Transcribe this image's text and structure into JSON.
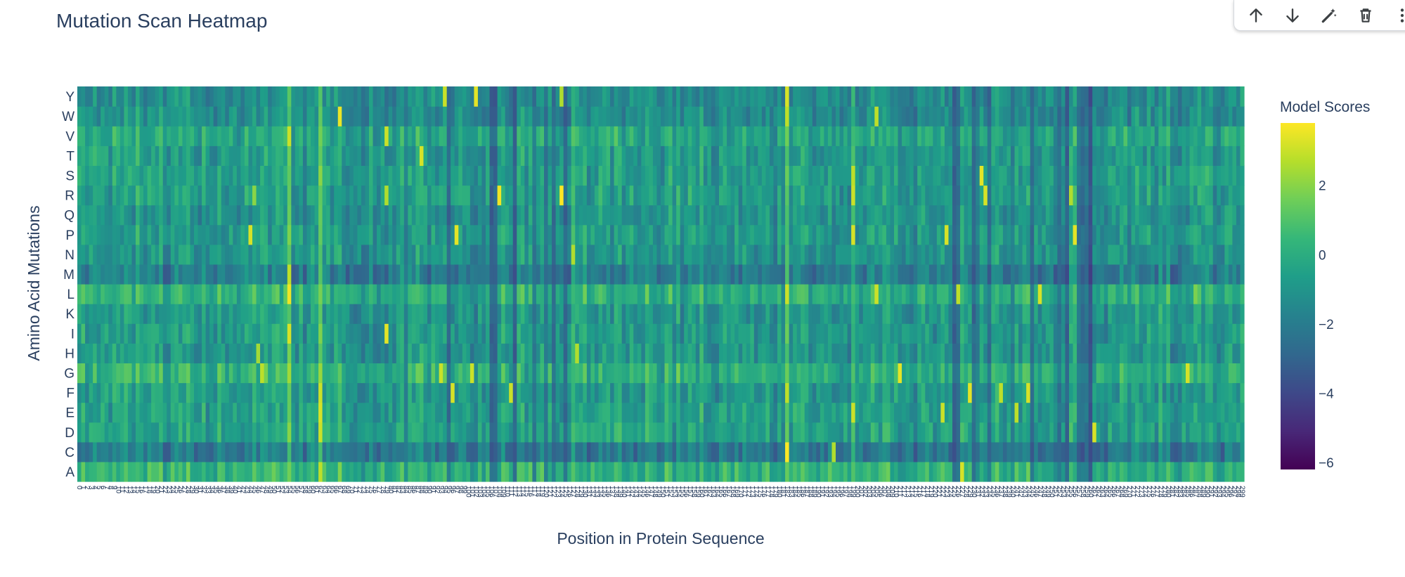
{
  "toolbar": {
    "items": [
      {
        "name": "move-up-icon"
      },
      {
        "name": "move-down-icon"
      },
      {
        "name": "edit-wand-icon"
      },
      {
        "name": "delete-icon"
      },
      {
        "name": "more-options-icon"
      }
    ]
  },
  "chart_data": {
    "type": "heatmap",
    "title": "Mutation Scan Heatmap",
    "xlabel": "Position in Protein Sequence",
    "ylabel": "Amino Acid Mutations",
    "colorbar_title": "Model Scores",
    "colorscale": "viridis",
    "colors": [
      "#440154",
      "#482878",
      "#3e4989",
      "#31688e",
      "#26828e",
      "#1f9e89",
      "#35b779",
      "#6ece58",
      "#b5de2b",
      "#fde725"
    ],
    "zmin": -6.2,
    "zmax": 3.8,
    "colorbar_ticks": [
      2,
      0,
      -2,
      -4,
      -6
    ],
    "colorbar_ticktext": [
      "2",
      "0",
      "−2",
      "−4",
      "−6"
    ],
    "y_categories": [
      "A",
      "C",
      "D",
      "E",
      "F",
      "G",
      "H",
      "I",
      "K",
      "L",
      "M",
      "N",
      "P",
      "Q",
      "R",
      "S",
      "T",
      "V",
      "W",
      "Y"
    ],
    "x_positions": {
      "start": 0,
      "end": 300,
      "count": 300
    },
    "row_baseline": {
      "A": 0.2,
      "C": -2.1,
      "D": -0.5,
      "E": -0.6,
      "F": -0.8,
      "G": 0.1,
      "H": -0.9,
      "I": -0.8,
      "K": -0.9,
      "L": 0.0,
      "M": -2.0,
      "N": -1.0,
      "P": -0.8,
      "Q": -1.0,
      "R": -0.7,
      "S": -0.6,
      "T": -0.8,
      "V": -0.3,
      "W": -1.3,
      "Y": -1.3
    },
    "column_effects": [
      {
        "position": 54,
        "value": 2.6
      },
      {
        "position": 62,
        "value": 2.0
      },
      {
        "position": 84,
        "value": -1.8
      },
      {
        "position": 95,
        "value": -2.6
      },
      {
        "position": 106,
        "value": -3.6
      },
      {
        "position": 107,
        "value": -3.2
      },
      {
        "position": 112,
        "value": -3.0
      },
      {
        "position": 117,
        "value": -2.6
      },
      {
        "position": 120,
        "value": -2.4
      },
      {
        "position": 122,
        "value": -2.8
      },
      {
        "position": 125,
        "value": -3.1
      },
      {
        "position": 127,
        "value": 1.2
      },
      {
        "position": 182,
        "value": 1.6
      },
      {
        "position": 199,
        "value": 1.3
      },
      {
        "position": 225,
        "value": -3.4
      },
      {
        "position": 226,
        "value": -2.4
      },
      {
        "position": 230,
        "value": -2.9
      },
      {
        "position": 231,
        "value": -2.1
      },
      {
        "position": 234,
        "value": -2.5
      },
      {
        "position": 240,
        "value": -2.3
      },
      {
        "position": 245,
        "value": -2.6
      },
      {
        "position": 252,
        "value": -3.0
      },
      {
        "position": 254,
        "value": -3.0
      },
      {
        "position": 258,
        "value": -2.8
      },
      {
        "position": 259,
        "value": -2.9
      },
      {
        "position": 257,
        "value": -2.0
      },
      {
        "position": 260,
        "value": -3.6
      }
    ],
    "hotspots": [
      {
        "position": 54,
        "aa": "L",
        "value": 3.6
      },
      {
        "position": 54,
        "aa": "I",
        "value": 3.2
      },
      {
        "position": 54,
        "aa": "V",
        "value": 3.0
      },
      {
        "position": 54,
        "aa": "M",
        "value": 2.8
      },
      {
        "position": 62,
        "aa": "E",
        "value": 3.2
      },
      {
        "position": 62,
        "aa": "D",
        "value": 3.0
      },
      {
        "position": 62,
        "aa": "A",
        "value": 2.8
      },
      {
        "position": 62,
        "aa": "F",
        "value": 3.0
      },
      {
        "position": 67,
        "aa": "W",
        "value": 3.5
      },
      {
        "position": 44,
        "aa": "P",
        "value": 3.2
      },
      {
        "position": 45,
        "aa": "R",
        "value": 2.0
      },
      {
        "position": 46,
        "aa": "H",
        "value": 2.4
      },
      {
        "position": 47,
        "aa": "G",
        "value": 2.8
      },
      {
        "position": 79,
        "aa": "I",
        "value": 3.4
      },
      {
        "position": 79,
        "aa": "V",
        "value": 3.0
      },
      {
        "position": 79,
        "aa": "R",
        "value": 2.6
      },
      {
        "position": 88,
        "aa": "T",
        "value": 3.2
      },
      {
        "position": 94,
        "aa": "Y",
        "value": 3.0
      },
      {
        "position": 97,
        "aa": "P",
        "value": 3.4
      },
      {
        "position": 96,
        "aa": "F",
        "value": 3.2
      },
      {
        "position": 93,
        "aa": "G",
        "value": 3.0
      },
      {
        "position": 101,
        "aa": "G",
        "value": 3.0
      },
      {
        "position": 102,
        "aa": "Y",
        "value": 3.4
      },
      {
        "position": 108,
        "aa": "R",
        "value": 3.6
      },
      {
        "position": 111,
        "aa": "F",
        "value": 3.0
      },
      {
        "position": 124,
        "aa": "R",
        "value": 3.8
      },
      {
        "position": 128,
        "aa": "H",
        "value": 2.6
      },
      {
        "position": 127,
        "aa": "N",
        "value": 2.6
      },
      {
        "position": 124,
        "aa": "Y",
        "value": 2.6
      },
      {
        "position": 182,
        "aa": "C",
        "value": 3.8
      },
      {
        "position": 182,
        "aa": "Y",
        "value": 3.2
      },
      {
        "position": 182,
        "aa": "W",
        "value": 2.8
      },
      {
        "position": 182,
        "aa": "L",
        "value": 3.0
      },
      {
        "position": 182,
        "aa": "F",
        "value": 2.8
      },
      {
        "position": 194,
        "aa": "C",
        "value": 2.6
      },
      {
        "position": 199,
        "aa": "E",
        "value": 3.0
      },
      {
        "position": 199,
        "aa": "P",
        "value": 3.2
      },
      {
        "position": 199,
        "aa": "R",
        "value": 3.0
      },
      {
        "position": 199,
        "aa": "S",
        "value": 2.8
      },
      {
        "position": 205,
        "aa": "W",
        "value": 2.8
      },
      {
        "position": 205,
        "aa": "L",
        "value": 3.0
      },
      {
        "position": 211,
        "aa": "G",
        "value": 3.4
      },
      {
        "position": 222,
        "aa": "E",
        "value": 3.0
      },
      {
        "position": 223,
        "aa": "P",
        "value": 3.2
      },
      {
        "position": 226,
        "aa": "L",
        "value": 2.8
      },
      {
        "position": 227,
        "aa": "A",
        "value": 3.2
      },
      {
        "position": 229,
        "aa": "F",
        "value": 3.4
      },
      {
        "position": 232,
        "aa": "S",
        "value": 3.4
      },
      {
        "position": 233,
        "aa": "R",
        "value": 3.2
      },
      {
        "position": 237,
        "aa": "F",
        "value": 2.8
      },
      {
        "position": 241,
        "aa": "E",
        "value": 2.8
      },
      {
        "position": 244,
        "aa": "F",
        "value": 3.2
      },
      {
        "position": 247,
        "aa": "L",
        "value": 3.2
      },
      {
        "position": 255,
        "aa": "R",
        "value": 2.6
      },
      {
        "position": 256,
        "aa": "P",
        "value": 3.4
      },
      {
        "position": 261,
        "aa": "D",
        "value": 3.2
      },
      {
        "position": 285,
        "aa": "G",
        "value": 3.2
      },
      {
        "position": 287,
        "aa": "L",
        "value": 1.8
      }
    ]
  }
}
